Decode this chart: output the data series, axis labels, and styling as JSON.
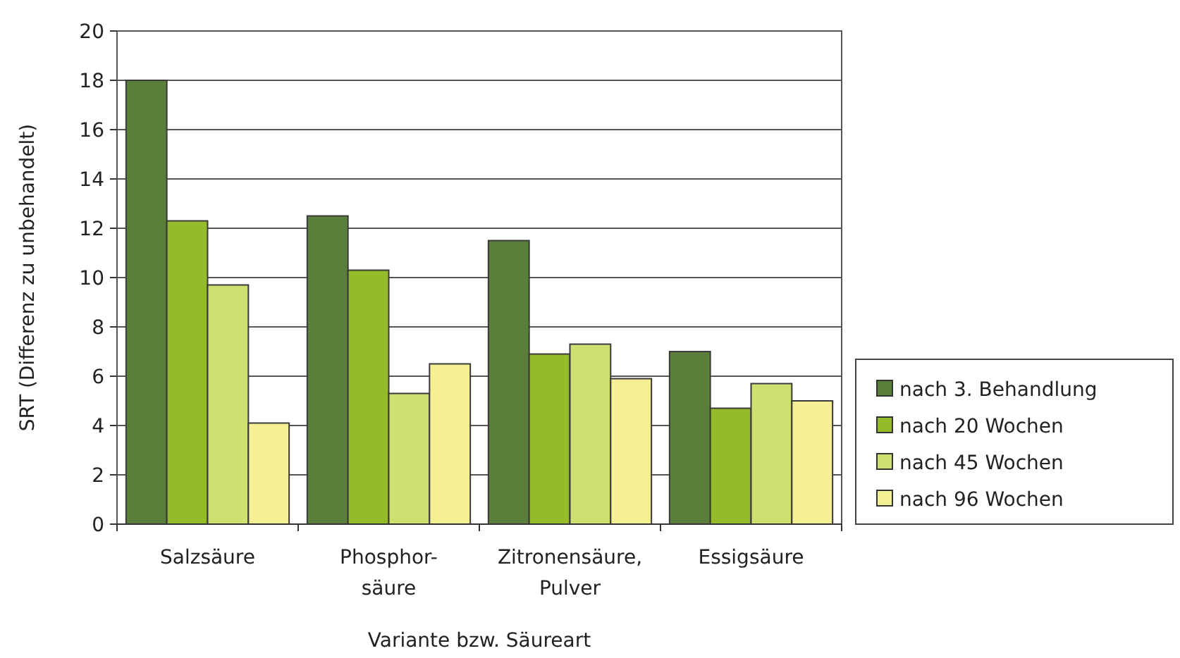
{
  "chart_data": {
    "type": "bar",
    "xlabel": "Variante bzw. Säureart",
    "ylabel": "SRT (Differenz zu unbehandelt)",
    "categories": [
      "Salzsäure",
      "Phosphor-\nsäure",
      "Zitronensäure,\nPulver",
      "Essigsäure"
    ],
    "series": [
      {
        "name": "nach 3. Behandlung",
        "color": "#5a7f3a",
        "values": [
          18,
          12.5,
          11.5,
          7.0
        ]
      },
      {
        "name": "nach 20 Wochen",
        "color": "#94bb2a",
        "values": [
          12.3,
          10.3,
          6.9,
          4.7
        ]
      },
      {
        "name": "nach 45 Wochen",
        "color": "#cfe070",
        "values": [
          9.7,
          5.3,
          7.3,
          5.7
        ]
      },
      {
        "name": "nach 96 Wochen",
        "color": "#f5f094",
        "values": [
          4.1,
          6.5,
          5.9,
          5.0
        ]
      }
    ],
    "ylim": [
      0,
      20
    ],
    "yticks": [
      0,
      2,
      4,
      6,
      8,
      10,
      12,
      14,
      16,
      18,
      20
    ],
    "grid": "y",
    "legend": "right"
  }
}
